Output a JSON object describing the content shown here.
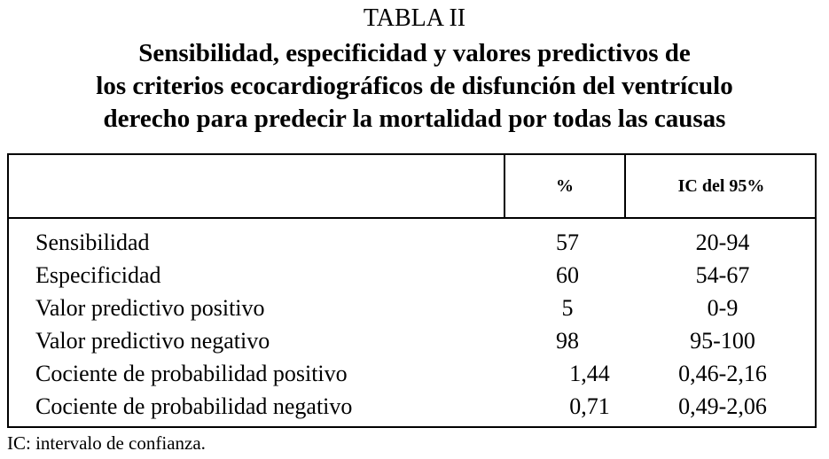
{
  "title": "TABLA II",
  "subtitle": [
    "Sensibilidad, especificidad y valores predictivos de",
    "los criterios ecocardiográficos de disfunción del ventrículo",
    "derecho para predecir la mortalidad por todas las causas"
  ],
  "table": {
    "headers": [
      "",
      "%",
      "IC del 95%"
    ],
    "rows": [
      {
        "label": "Sensibilidad",
        "pct": "57",
        "ic": "20-94"
      },
      {
        "label": "Especificidad",
        "pct": "60",
        "ic": "54-67"
      },
      {
        "label": "Valor predictivo positivo",
        "pct": "5",
        "ic": "0-9"
      },
      {
        "label": "Valor predictivo negativo",
        "pct": "98",
        "ic": "95-100"
      },
      {
        "label": "Cociente de probabilidad positivo",
        "pct": "1,44",
        "ic": "0,46-2,16"
      },
      {
        "label": "Cociente de probabilidad negativo",
        "pct": "0,71",
        "ic": "0,49-2,06"
      }
    ]
  },
  "footnote": "IC: intervalo de confianza."
}
